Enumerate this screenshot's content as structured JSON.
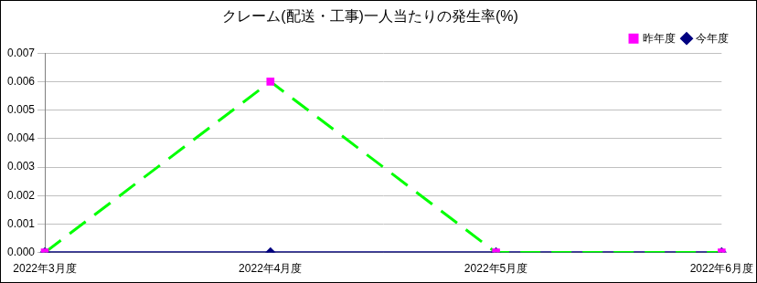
{
  "chart_data": {
    "type": "line",
    "title": "クレーム(配送・工事)一人当たりの発生率(%)",
    "categories": [
      "2022年3月度",
      "2022年4月度",
      "2022年5月度",
      "2022年6月度"
    ],
    "series": [
      {
        "name": "今年度",
        "color": "#000080",
        "marker": "diamond",
        "line_style": "solid",
        "values": [
          0,
          0,
          0,
          0
        ]
      },
      {
        "name": "昨年度",
        "color": "#00ff00",
        "marker": "square",
        "line_style": "dashed",
        "values": [
          0,
          0.006,
          0,
          0
        ]
      }
    ],
    "ylim": [
      0,
      0.007
    ],
    "yticks": [
      {
        "value": 0,
        "label": "0.000"
      },
      0.001,
      0.002,
      0.003,
      0.004,
      0.005,
      0.006,
      0.007
    ],
    "grid": true,
    "legend": "top-right"
  }
}
